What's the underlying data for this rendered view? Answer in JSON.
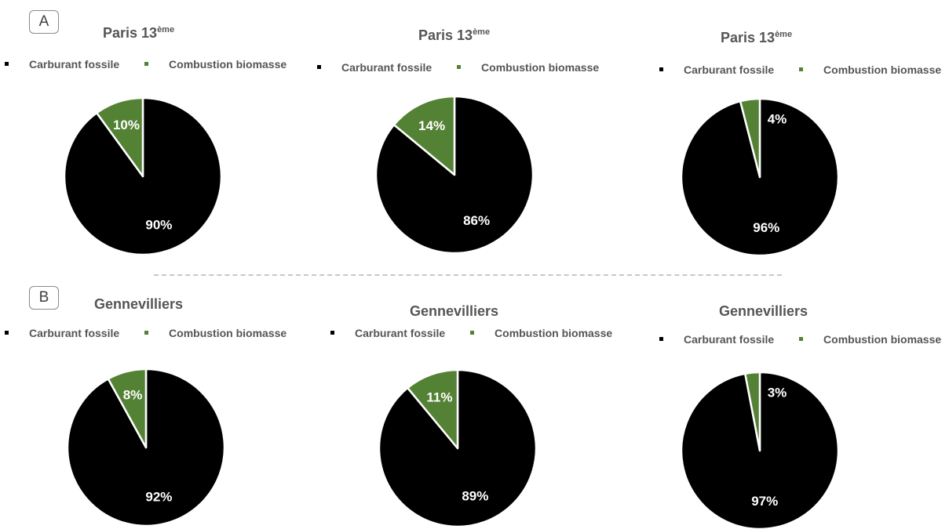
{
  "panels": [
    {
      "label": "A"
    },
    {
      "label": "B"
    }
  ],
  "colors": {
    "fossil": "#000000",
    "biomass": "#548235",
    "slice_border": "#ffffff"
  },
  "chart_data": [
    {
      "type": "pie",
      "title": "Paris 13",
      "title_sup": "ème",
      "legend": [
        "Carburant fossile",
        "Combustion biomasse"
      ],
      "slices": [
        {
          "label": "Carburant fossile",
          "value": 90,
          "display": "90%"
        },
        {
          "label": "Combustion biomasse",
          "value": 10,
          "display": "10%"
        }
      ]
    },
    {
      "type": "pie",
      "title": "Paris 13",
      "title_sup": "ème",
      "legend": [
        "Carburant fossile",
        "Combustion biomasse"
      ],
      "slices": [
        {
          "label": "Carburant fossile",
          "value": 86,
          "display": "86%"
        },
        {
          "label": "Combustion biomasse",
          "value": 14,
          "display": "14%"
        }
      ]
    },
    {
      "type": "pie",
      "title": "Paris 13",
      "title_sup": "ème",
      "legend": [
        "Carburant fossile",
        "Combustion biomasse"
      ],
      "slices": [
        {
          "label": "Carburant fossile",
          "value": 96,
          "display": "96%"
        },
        {
          "label": "Combustion biomasse",
          "value": 4,
          "display": "4%"
        }
      ]
    },
    {
      "type": "pie",
      "title": "Gennevilliers",
      "title_sup": "",
      "legend": [
        "Carburant fossile",
        "Combustion biomasse"
      ],
      "slices": [
        {
          "label": "Carburant fossile",
          "value": 92,
          "display": "92%"
        },
        {
          "label": "Combustion biomasse",
          "value": 8,
          "display": "8%"
        }
      ]
    },
    {
      "type": "pie",
      "title": "Gennevilliers",
      "title_sup": "",
      "legend": [
        "Carburant fossile",
        "Combustion biomasse"
      ],
      "slices": [
        {
          "label": "Carburant fossile",
          "value": 89,
          "display": "89%"
        },
        {
          "label": "Combustion biomasse",
          "value": 11,
          "display": "11%"
        }
      ]
    },
    {
      "type": "pie",
      "title": "Gennevilliers",
      "title_sup": "",
      "legend": [
        "Carburant fossile",
        "Combustion biomasse"
      ],
      "slices": [
        {
          "label": "Carburant fossile",
          "value": 97,
          "display": "97%"
        },
        {
          "label": "Combustion biomasse",
          "value": 3,
          "display": "3%"
        }
      ]
    }
  ]
}
